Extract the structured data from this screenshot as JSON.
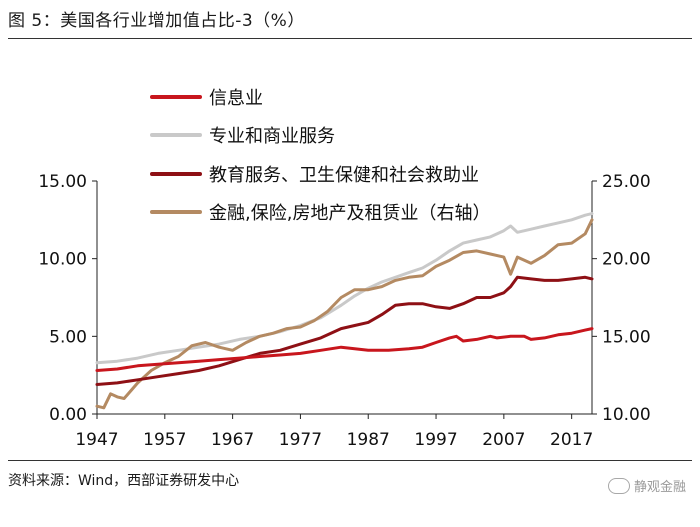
{
  "figure": {
    "title": "图 5：美国各行业增加值占比-3（%）",
    "source": "资料来源：Wind，西部证券研发中心",
    "watermark": "静观金融"
  },
  "chart_data": {
    "type": "line",
    "x_ticks": [
      1947,
      1957,
      1967,
      1977,
      1987,
      1997,
      2007,
      2017
    ],
    "x_range": [
      1947,
      2020
    ],
    "y_left": {
      "ticks": [
        "0.00",
        "5.00",
        "10.00",
        "15.00"
      ],
      "range": [
        0,
        15
      ]
    },
    "y_right": {
      "ticks": [
        "10.00",
        "15.00",
        "20.00",
        "25.00"
      ],
      "range": [
        10,
        25
      ]
    },
    "grid": false,
    "legend_position": "top-left",
    "series": [
      {
        "name": "信息业",
        "color": "#c8161d",
        "axis": "left",
        "points": [
          [
            1947,
            2.8
          ],
          [
            1950,
            2.9
          ],
          [
            1953,
            3.1
          ],
          [
            1956,
            3.2
          ],
          [
            1959,
            3.3
          ],
          [
            1962,
            3.4
          ],
          [
            1965,
            3.5
          ],
          [
            1968,
            3.6
          ],
          [
            1971,
            3.7
          ],
          [
            1974,
            3.8
          ],
          [
            1977,
            3.9
          ],
          [
            1980,
            4.1
          ],
          [
            1983,
            4.3
          ],
          [
            1985,
            4.2
          ],
          [
            1987,
            4.1
          ],
          [
            1990,
            4.1
          ],
          [
            1993,
            4.2
          ],
          [
            1995,
            4.3
          ],
          [
            1997,
            4.6
          ],
          [
            1999,
            4.9
          ],
          [
            2000,
            5.0
          ],
          [
            2001,
            4.7
          ],
          [
            2003,
            4.8
          ],
          [
            2005,
            5.0
          ],
          [
            2006,
            4.9
          ],
          [
            2008,
            5.0
          ],
          [
            2010,
            5.0
          ],
          [
            2011,
            4.8
          ],
          [
            2013,
            4.9
          ],
          [
            2015,
            5.1
          ],
          [
            2017,
            5.2
          ],
          [
            2019,
            5.4
          ],
          [
            2020,
            5.5
          ]
        ]
      },
      {
        "name": "专业和商业服务",
        "color": "#c9c9c9",
        "axis": "left",
        "points": [
          [
            1947,
            3.3
          ],
          [
            1950,
            3.4
          ],
          [
            1953,
            3.6
          ],
          [
            1956,
            3.9
          ],
          [
            1959,
            4.1
          ],
          [
            1962,
            4.3
          ],
          [
            1965,
            4.5
          ],
          [
            1968,
            4.8
          ],
          [
            1971,
            5.0
          ],
          [
            1974,
            5.3
          ],
          [
            1977,
            5.7
          ],
          [
            1980,
            6.2
          ],
          [
            1983,
            7.0
          ],
          [
            1985,
            7.6
          ],
          [
            1987,
            8.1
          ],
          [
            1989,
            8.5
          ],
          [
            1991,
            8.8
          ],
          [
            1993,
            9.1
          ],
          [
            1995,
            9.4
          ],
          [
            1997,
            9.9
          ],
          [
            1999,
            10.5
          ],
          [
            2001,
            11.0
          ],
          [
            2003,
            11.2
          ],
          [
            2005,
            11.4
          ],
          [
            2007,
            11.8
          ],
          [
            2008,
            12.1
          ],
          [
            2009,
            11.7
          ],
          [
            2011,
            11.9
          ],
          [
            2013,
            12.1
          ],
          [
            2015,
            12.3
          ],
          [
            2017,
            12.5
          ],
          [
            2019,
            12.8
          ],
          [
            2020,
            12.9
          ]
        ]
      },
      {
        "name": "教育服务、卫生保健和社会救助业",
        "color": "#8e1015",
        "axis": "left",
        "points": [
          [
            1947,
            1.9
          ],
          [
            1950,
            2.0
          ],
          [
            1953,
            2.2
          ],
          [
            1956,
            2.4
          ],
          [
            1959,
            2.6
          ],
          [
            1962,
            2.8
          ],
          [
            1965,
            3.1
          ],
          [
            1968,
            3.5
          ],
          [
            1971,
            3.9
          ],
          [
            1974,
            4.1
          ],
          [
            1977,
            4.5
          ],
          [
            1980,
            4.9
          ],
          [
            1983,
            5.5
          ],
          [
            1985,
            5.7
          ],
          [
            1987,
            5.9
          ],
          [
            1989,
            6.4
          ],
          [
            1991,
            7.0
          ],
          [
            1993,
            7.1
          ],
          [
            1995,
            7.1
          ],
          [
            1997,
            6.9
          ],
          [
            1999,
            6.8
          ],
          [
            2001,
            7.1
          ],
          [
            2003,
            7.5
          ],
          [
            2005,
            7.5
          ],
          [
            2007,
            7.8
          ],
          [
            2008,
            8.2
          ],
          [
            2009,
            8.8
          ],
          [
            2011,
            8.7
          ],
          [
            2013,
            8.6
          ],
          [
            2015,
            8.6
          ],
          [
            2017,
            8.7
          ],
          [
            2019,
            8.8
          ],
          [
            2020,
            8.7
          ]
        ]
      },
      {
        "name": "金融,保险,房地产及租赁业（右轴）",
        "color": "#b48a62",
        "axis": "right",
        "points": [
          [
            1947,
            10.5
          ],
          [
            1948,
            10.4
          ],
          [
            1949,
            11.3
          ],
          [
            1950,
            11.1
          ],
          [
            1951,
            11.0
          ],
          [
            1953,
            12.0
          ],
          [
            1955,
            12.8
          ],
          [
            1957,
            13.3
          ],
          [
            1959,
            13.7
          ],
          [
            1961,
            14.4
          ],
          [
            1963,
            14.6
          ],
          [
            1965,
            14.3
          ],
          [
            1967,
            14.1
          ],
          [
            1969,
            14.6
          ],
          [
            1971,
            15.0
          ],
          [
            1973,
            15.2
          ],
          [
            1975,
            15.5
          ],
          [
            1977,
            15.6
          ],
          [
            1979,
            16.0
          ],
          [
            1981,
            16.6
          ],
          [
            1983,
            17.5
          ],
          [
            1985,
            18.0
          ],
          [
            1987,
            18.0
          ],
          [
            1989,
            18.2
          ],
          [
            1991,
            18.6
          ],
          [
            1993,
            18.8
          ],
          [
            1995,
            18.9
          ],
          [
            1997,
            19.5
          ],
          [
            1999,
            19.9
          ],
          [
            2001,
            20.4
          ],
          [
            2003,
            20.5
          ],
          [
            2005,
            20.3
          ],
          [
            2007,
            20.1
          ],
          [
            2008,
            19.0
          ],
          [
            2009,
            20.1
          ],
          [
            2011,
            19.7
          ],
          [
            2013,
            20.2
          ],
          [
            2015,
            20.9
          ],
          [
            2017,
            21.0
          ],
          [
            2019,
            21.6
          ],
          [
            2020,
            22.5
          ]
        ]
      }
    ]
  }
}
